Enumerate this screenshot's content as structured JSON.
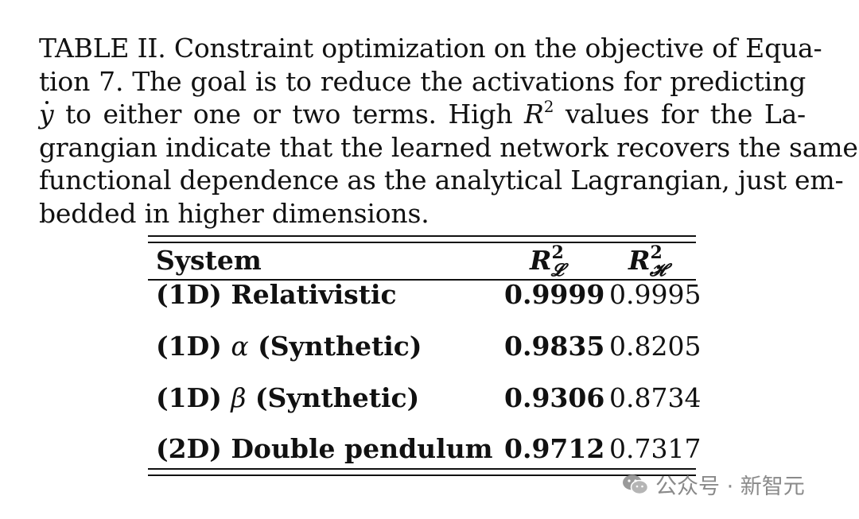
{
  "caption": {
    "lines": [
      "TABLE II. Constraint optimization on the objective of Equa-",
      "tion 7.  The goal is to reduce the activations for predicting",
      "to either one or two terms.  High",
      "values for the La-",
      "grangian indicate that the learned network recovers the same",
      "functional dependence as the analytical Lagrangian, just em-",
      "bedded in higher dimensions."
    ],
    "symbol_y": "y",
    "symbol_R": "R",
    "symbol_sup": "2"
  },
  "table": {
    "headers": {
      "system": "System",
      "col1_base": "R",
      "col1_sup": "2",
      "col1_sub": "𝓛",
      "col2_base": "R",
      "col2_sup": "2",
      "col2_sub": "𝓗"
    },
    "rows": [
      {
        "prefix": "(1D)",
        "greek": "",
        "name": "Relativistic",
        "rl": "0.9999",
        "rh": "0.9995"
      },
      {
        "prefix": "(1D)",
        "greek": "α",
        "name": "(Synthetic)",
        "rl": "0.9835",
        "rh": "0.8205"
      },
      {
        "prefix": "(1D)",
        "greek": "β",
        "name": "(Synthetic)",
        "rl": "0.9306",
        "rh": "0.8734"
      },
      {
        "prefix": "(2D)",
        "greek": "",
        "name": "Double pendulum",
        "rl": "0.9712",
        "rh": "0.7317"
      }
    ]
  },
  "watermark": {
    "text": "公众号 · 新智元",
    "icon": "wechat-icon"
  }
}
